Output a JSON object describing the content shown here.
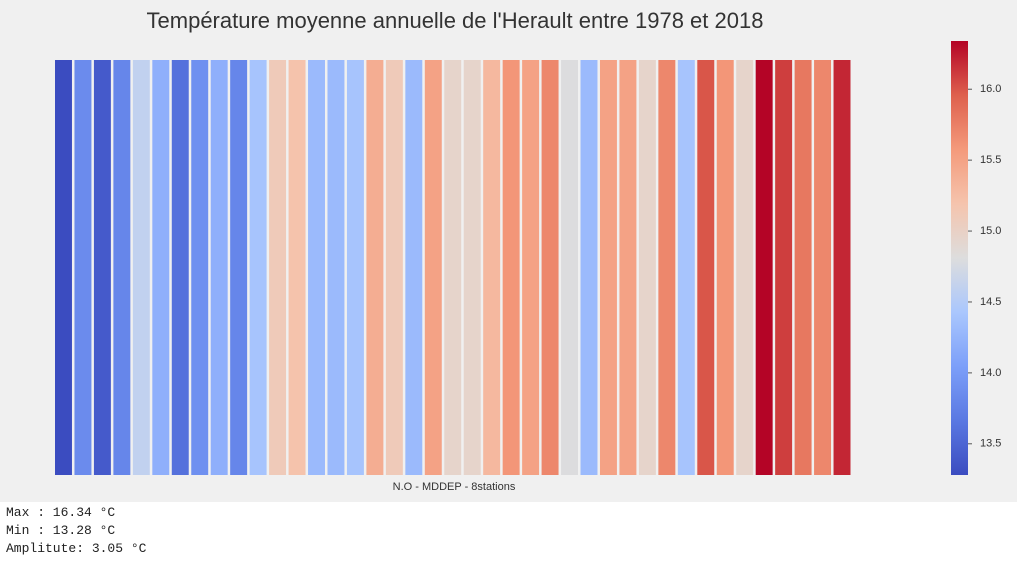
{
  "chart_data": {
    "type": "stripes",
    "title": "Température moyenne annuelle de l'Herault entre 1978 et 2018",
    "xlabel": "N.O - MDDEP - 8stations",
    "colormap": "coolwarm",
    "values": [
      13.28,
      13.85,
      13.4,
      13.8,
      14.6,
      14.2,
      13.6,
      13.9,
      14.2,
      13.8,
      14.4,
      15.1,
      15.2,
      14.3,
      14.3,
      14.4,
      15.4,
      15.1,
      14.3,
      15.5,
      14.95,
      14.95,
      15.3,
      15.6,
      15.5,
      15.7,
      14.8,
      14.3,
      15.5,
      15.5,
      14.95,
      15.7,
      14.4,
      16.0,
      15.6,
      14.95,
      16.34,
      16.1,
      15.8,
      15.7,
      16.2
    ],
    "clim": [
      13.28,
      16.34
    ],
    "cticks": [
      13.5,
      {
        "value": 14,
        "label": "14.0"
      },
      14.5,
      {
        "value": 15,
        "label": "15.0"
      },
      15.5,
      {
        "value": 16,
        "label": "16.0"
      }
    ]
  },
  "stats": [
    "Max : 16.34 °C",
    "Min : 13.28 °C",
    "Amplitute: 3.05 °C"
  ]
}
